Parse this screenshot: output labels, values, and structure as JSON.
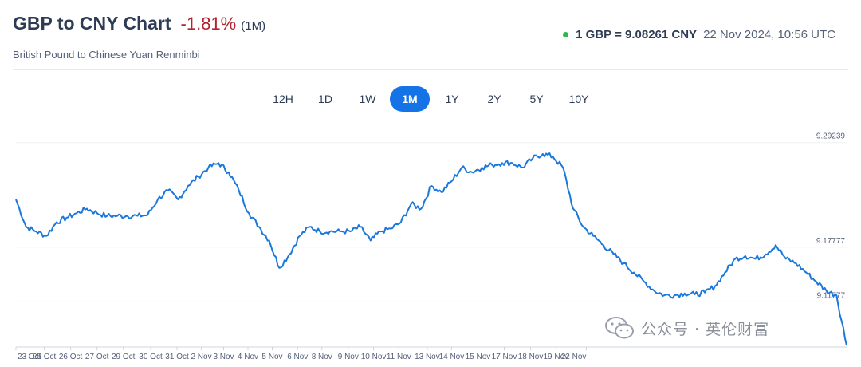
{
  "header": {
    "title": "GBP to CNY Chart",
    "change": "-1.81%",
    "period": "(1M)",
    "subtitle": "British Pound to Chinese Yuan Renminbi",
    "rate": "1 GBP = 9.08261 CNY",
    "timestamp": "22 Nov 2024, 10:56 UTC"
  },
  "tabs": [
    {
      "label": "12H",
      "active": false
    },
    {
      "label": "1D",
      "active": false
    },
    {
      "label": "1W",
      "active": false
    },
    {
      "label": "1M",
      "active": true
    },
    {
      "label": "1Y",
      "active": false
    },
    {
      "label": "2Y",
      "active": false
    },
    {
      "label": "5Y",
      "active": false
    },
    {
      "label": "10Y",
      "active": false
    }
  ],
  "watermark": {
    "text": "公众号 · 英伦财富"
  },
  "colors": {
    "line": "#1a78dc",
    "negative": "#b3222f",
    "accent": "#1473e6",
    "live": "#2db84d"
  },
  "chart_data": {
    "type": "line",
    "title": "",
    "xlabel": "",
    "ylabel": "",
    "grid": true,
    "ylim": [
      9.07,
      9.3
    ],
    "y_ticks": [
      9.29239,
      9.17777,
      9.11777
    ],
    "x_tick_labels": [
      "23 Oct",
      "25 Oct",
      "26 Oct",
      "27 Oct",
      "29 Oct",
      "30 Oct",
      "31 Oct",
      "2 Nov",
      "3 Nov",
      "4 Nov",
      "5 Nov",
      "6 Nov",
      "8 Nov",
      "9 Nov",
      "10 Nov",
      "11 Nov",
      "13 Nov",
      "14 Nov",
      "15 Nov",
      "17 Nov",
      "18 Nov",
      "19 Nov",
      "22 Nov"
    ],
    "x_tick_index": [
      0,
      2.8,
      5.4,
      8.0,
      10.6,
      13.3,
      15.9,
      18.3,
      20.5,
      22.9,
      25.3,
      27.8,
      30.2,
      32.8,
      35.3,
      37.8,
      40.6,
      43.0,
      45.6,
      48.2,
      50.8,
      53.3,
      56.3
    ],
    "series": [
      {
        "values": [
          9.23,
          9.2,
          9.195,
          9.19,
          9.205,
          9.21,
          9.215,
          9.22,
          9.215,
          9.212,
          9.212,
          9.212,
          9.212,
          9.213,
          9.23,
          9.24,
          9.23,
          9.245,
          9.255,
          9.265,
          9.27,
          9.26,
          9.24,
          9.215,
          9.2,
          9.185,
          9.155,
          9.17,
          9.19,
          9.2,
          9.195,
          9.195,
          9.195,
          9.195,
          9.2,
          9.185,
          9.195,
          9.198,
          9.205,
          9.225,
          9.22,
          9.245,
          9.238,
          9.25,
          9.265,
          9.26,
          9.265,
          9.268,
          9.27,
          9.27,
          9.265,
          9.275,
          9.28,
          9.277,
          9.265,
          9.22,
          9.2,
          9.19,
          9.18,
          9.17,
          9.16,
          9.15,
          9.14,
          9.13,
          9.125,
          9.125,
          9.127,
          9.126,
          9.128,
          9.135,
          9.15,
          9.165,
          9.168,
          9.165,
          9.17,
          9.18,
          9.165,
          9.16,
          9.15,
          9.14,
          9.13,
          9.125,
          9.07
        ]
      }
    ]
  }
}
